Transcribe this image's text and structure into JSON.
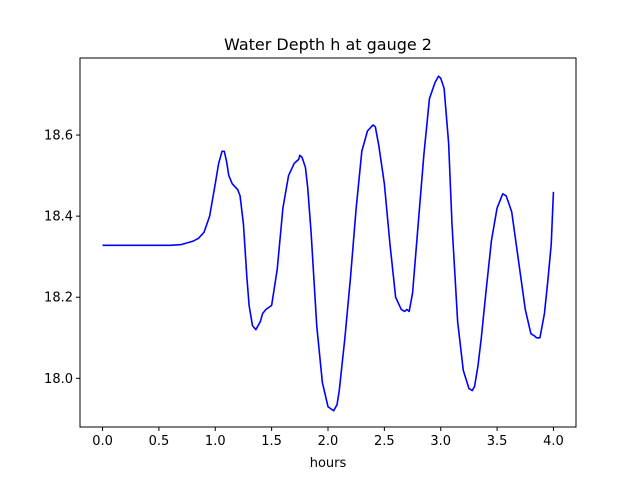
{
  "chart_data": {
    "type": "line",
    "title": "Water Depth h at gauge 2",
    "xlabel": "hours",
    "ylabel": "",
    "xlim": [
      -0.2,
      4.2
    ],
    "ylim": [
      17.88,
      18.79
    ],
    "xticks": [
      0.0,
      0.5,
      1.0,
      1.5,
      2.0,
      2.5,
      3.0,
      3.5,
      4.0
    ],
    "xtick_labels": [
      "0.0",
      "0.5",
      "1.0",
      "1.5",
      "2.0",
      "2.5",
      "3.0",
      "3.5",
      "4.0"
    ],
    "yticks": [
      18.0,
      18.2,
      18.4,
      18.6
    ],
    "ytick_labels": [
      "18.0",
      "18.2",
      "18.4",
      "18.6"
    ],
    "grid": false,
    "line_color": "#0000ff",
    "series": [
      {
        "x": [
          0.0,
          0.3,
          0.6,
          0.7,
          0.8,
          0.85,
          0.9,
          0.95,
          1.0,
          1.03,
          1.06,
          1.08,
          1.1,
          1.12,
          1.15,
          1.2,
          1.22,
          1.25,
          1.28,
          1.3,
          1.33,
          1.36,
          1.4,
          1.42,
          1.45,
          1.5,
          1.55,
          1.6,
          1.65,
          1.7,
          1.72,
          1.74,
          1.75,
          1.77,
          1.8,
          1.82,
          1.85,
          1.9,
          1.95,
          2.0,
          2.05,
          2.08,
          2.1,
          2.15,
          2.2,
          2.25,
          2.3,
          2.35,
          2.4,
          2.42,
          2.45,
          2.5,
          2.55,
          2.6,
          2.65,
          2.68,
          2.7,
          2.72,
          2.75,
          2.8,
          2.85,
          2.9,
          2.95,
          2.98,
          3.0,
          3.03,
          3.07,
          3.1,
          3.15,
          3.2,
          3.25,
          3.28,
          3.3,
          3.33,
          3.36,
          3.4,
          3.45,
          3.5,
          3.55,
          3.58,
          3.6,
          3.63,
          3.65,
          3.7,
          3.75,
          3.8,
          3.83,
          3.85,
          3.88,
          3.92,
          3.95,
          3.98,
          4.0
        ],
        "y": [
          18.328,
          18.328,
          18.328,
          18.33,
          18.338,
          18.345,
          18.36,
          18.4,
          18.48,
          18.53,
          18.56,
          18.56,
          18.535,
          18.5,
          18.48,
          18.465,
          18.45,
          18.38,
          18.25,
          18.18,
          18.13,
          18.12,
          18.14,
          18.16,
          18.17,
          18.18,
          18.27,
          18.42,
          18.5,
          18.53,
          18.535,
          18.54,
          18.55,
          18.545,
          18.52,
          18.47,
          18.36,
          18.13,
          17.99,
          17.93,
          17.92,
          17.935,
          17.97,
          18.1,
          18.25,
          18.42,
          18.56,
          18.61,
          18.625,
          18.62,
          18.575,
          18.48,
          18.33,
          18.2,
          18.17,
          18.165,
          18.17,
          18.165,
          18.21,
          18.38,
          18.55,
          18.69,
          18.73,
          18.745,
          18.74,
          18.715,
          18.58,
          18.38,
          18.14,
          18.02,
          17.975,
          17.97,
          17.98,
          18.03,
          18.1,
          18.21,
          18.34,
          18.42,
          18.455,
          18.45,
          18.435,
          18.41,
          18.37,
          18.27,
          18.17,
          18.11,
          18.105,
          18.1,
          18.1,
          18.16,
          18.24,
          18.33,
          18.46
        ]
      }
    ]
  }
}
